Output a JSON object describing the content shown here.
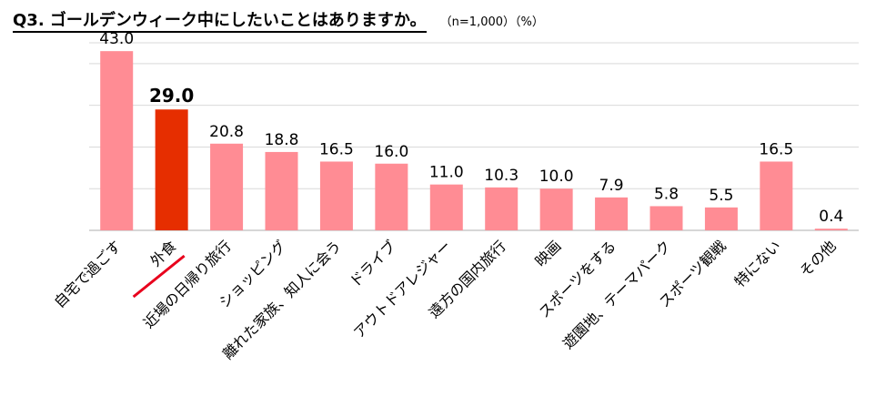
{
  "chart_data": {
    "type": "bar",
    "title": "Q3. ゴールデンウィーク中にしたいことはありますか。",
    "subtitle": "（n=1,000）（%）",
    "categories": [
      "自宅で過ごす",
      "外食",
      "近場の日帰り旅行",
      "ショッピング",
      "離れた家族、知人に会う",
      "ドライブ",
      "アウトドアレジャー",
      "遠方の国内旅行",
      "映画",
      "スポーツをする",
      "遊園地、テーマパーク",
      "スポーツ観戦",
      "特にない",
      "その他"
    ],
    "values": [
      43.0,
      29.0,
      20.8,
      18.8,
      16.5,
      16.0,
      11.0,
      10.3,
      10.0,
      7.9,
      5.8,
      5.5,
      16.5,
      0.4
    ],
    "value_labels": [
      "43.0",
      "29.0",
      "20.8",
      "18.8",
      "16.5",
      "16.0",
      "11.0",
      "10.3",
      "10.0",
      "7.9",
      "5.8",
      "5.5",
      "16.5",
      "0.4"
    ],
    "highlight_index": 1,
    "ylim": [
      0,
      45
    ],
    "gridlines": [
      10,
      20,
      30,
      40
    ],
    "grid": true,
    "legend": false,
    "colors": {
      "bar": "#ff8c94",
      "highlight": "#e62e00",
      "highlight_underline": "#e8001c",
      "grid": "#d9d9d9",
      "axis": "#bfbfbf",
      "text": "#000000"
    }
  }
}
